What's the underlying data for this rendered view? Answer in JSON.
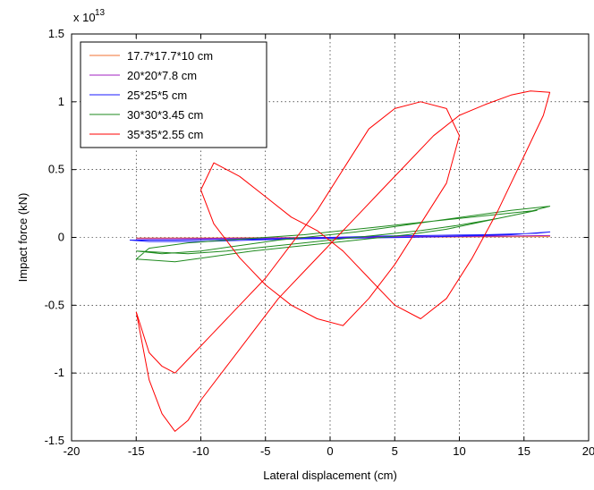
{
  "chart_data": {
    "type": "line",
    "title": "",
    "xlabel": "Lateral displacement (cm)",
    "ylabel": "Impact force (kN)",
    "y_exponent_label": "x 10",
    "y_exponent_power": "13",
    "xlim": [
      -20,
      20
    ],
    "ylim": [
      -1.5,
      1.5
    ],
    "x_ticks": [
      -20,
      -15,
      -10,
      -5,
      0,
      5,
      10,
      15,
      20
    ],
    "y_ticks": [
      -1.5,
      -1,
      -0.5,
      0,
      0.5,
      1,
      1.5
    ],
    "x_tick_labels": [
      "-20",
      "-15",
      "-10",
      "-5",
      "0",
      "5",
      "10",
      "15",
      "20"
    ],
    "y_tick_labels": [
      "-1.5",
      "-1",
      "-0.5",
      "0",
      "0.5",
      "1",
      "1.5"
    ],
    "grid": true,
    "legend_position": "top-left",
    "series": [
      {
        "name": "17.7*17.7*10 cm",
        "color": "#f07030",
        "x": [
          -15,
          -10,
          -5,
          0,
          5,
          10,
          15,
          17,
          10,
          5,
          0,
          -5,
          -10,
          -15
        ],
        "y": [
          -0.005,
          -0.004,
          -0.002,
          0,
          0.002,
          0.004,
          0.005,
          0.006,
          0.003,
          0.001,
          -0.001,
          -0.003,
          -0.005,
          -0.005
        ]
      },
      {
        "name": "20*20*7.8 cm",
        "color": "#a020c0",
        "x": [
          -15,
          -10,
          -5,
          0,
          5,
          10,
          15,
          17,
          12,
          5,
          0,
          -5,
          -10,
          -15
        ],
        "y": [
          -0.01,
          -0.008,
          -0.005,
          0,
          0.005,
          0.009,
          0.012,
          0.014,
          0.008,
          0.002,
          -0.003,
          -0.006,
          -0.01,
          -0.01
        ]
      },
      {
        "name": "25*25*5 cm",
        "color": "#1a1aff",
        "x": [
          -15.5,
          -12,
          -8,
          -4,
          0,
          4,
          8,
          12,
          16,
          17,
          14,
          10,
          6,
          2,
          -2,
          -6,
          -10,
          -14,
          -15.5
        ],
        "y": [
          -0.02,
          -0.02,
          -0.015,
          -0.01,
          0,
          0.01,
          0.015,
          0.02,
          0.03,
          0.04,
          0.02,
          0.01,
          0.0,
          -0.005,
          -0.01,
          -0.02,
          -0.03,
          -0.03,
          -0.02
        ]
      },
      {
        "name": "30*30*3.45 cm",
        "color": "#1e8a1e",
        "x": [
          -15,
          -13,
          -10,
          -7,
          -4,
          -1,
          2,
          5,
          8,
          11,
          14,
          17,
          15,
          12,
          9,
          6,
          3,
          0,
          -3,
          -6,
          -9,
          -12,
          -15,
          -14,
          -11,
          -8,
          -5,
          -2,
          1,
          4,
          7,
          10,
          13,
          16,
          13,
          10,
          7,
          4,
          1,
          -2,
          -5,
          -8,
          -11,
          -15
        ],
        "y": [
          -0.1,
          -0.12,
          -0.1,
          -0.06,
          -0.02,
          0.01,
          0.04,
          0.08,
          0.12,
          0.16,
          0.2,
          0.23,
          0.18,
          0.12,
          0.06,
          0.02,
          -0.01,
          -0.04,
          -0.07,
          -0.1,
          -0.14,
          -0.18,
          -0.16,
          -0.08,
          -0.04,
          -0.02,
          0.0,
          0.02,
          0.05,
          0.08,
          0.11,
          0.14,
          0.17,
          0.2,
          0.14,
          0.09,
          0.05,
          0.02,
          -0.01,
          -0.04,
          -0.07,
          -0.1,
          -0.12,
          -0.1
        ]
      },
      {
        "name": "35*35*2.55 cm",
        "color": "#ff0000",
        "x": [
          -15,
          -14,
          -13,
          -12,
          -11,
          -10,
          -8,
          -6,
          -4,
          -2,
          0,
          2,
          4,
          6,
          8,
          10,
          12,
          14,
          15.5,
          17,
          16.5,
          15,
          13,
          11,
          9,
          7,
          5,
          3,
          1,
          -1,
          -3,
          -5,
          -7,
          -9,
          -10,
          -9,
          -7,
          -5,
          -3,
          -1,
          1,
          3,
          5,
          7,
          9,
          10,
          9,
          7,
          5,
          3,
          1,
          -1,
          -3,
          -5,
          -7,
          -9,
          -11,
          -12,
          -13,
          -14,
          -15
        ],
        "y": [
          -0.55,
          -1.05,
          -1.3,
          -1.43,
          -1.35,
          -1.2,
          -0.95,
          -0.7,
          -0.45,
          -0.25,
          -0.05,
          0.15,
          0.35,
          0.55,
          0.75,
          0.9,
          0.98,
          1.05,
          1.08,
          1.07,
          0.9,
          0.6,
          0.2,
          -0.15,
          -0.45,
          -0.6,
          -0.5,
          -0.3,
          -0.1,
          0.05,
          0.15,
          0.3,
          0.45,
          0.55,
          0.35,
          0.1,
          -0.15,
          -0.35,
          -0.5,
          -0.6,
          -0.65,
          -0.45,
          -0.2,
          0.1,
          0.4,
          0.75,
          0.95,
          1.0,
          0.95,
          0.8,
          0.5,
          0.2,
          -0.05,
          -0.3,
          -0.5,
          -0.7,
          -0.9,
          -1.0,
          -0.95,
          -0.85,
          -0.55
        ]
      }
    ]
  }
}
